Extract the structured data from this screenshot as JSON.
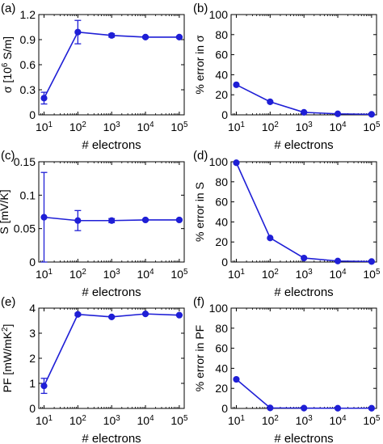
{
  "colors": {
    "series": "#1f1fd6",
    "axis": "#000000",
    "background": "#ffffff"
  },
  "chart_data": [
    {
      "panel_label": "(a)",
      "type": "line",
      "x": [
        10,
        100,
        1000,
        10000,
        100000
      ],
      "x_tick_labels": [
        "10^1",
        "10^2",
        "10^3",
        "10^4",
        "10^5"
      ],
      "xscale": "log",
      "xlim": [
        7,
        140000
      ],
      "y": [
        0.2,
        0.99,
        0.95,
        0.93,
        0.93
      ],
      "yerr": [
        0.07,
        0.14,
        0.02,
        0.01,
        0.01
      ],
      "ylim": [
        0,
        1.2
      ],
      "y_ticks": [
        "0",
        "0.3",
        "0.6",
        "0.9",
        "1.2"
      ],
      "y_tick_values": [
        0,
        0.3,
        0.6,
        0.9,
        1.2
      ],
      "xlabel": "# electrons",
      "ylabel": "σ [10^6 S/m]",
      "grid": false
    },
    {
      "panel_label": "(b)",
      "type": "line",
      "x": [
        10,
        100,
        1000,
        10000,
        100000
      ],
      "x_tick_labels": [
        "10^1",
        "10^2",
        "10^3",
        "10^4",
        "10^5"
      ],
      "xscale": "log",
      "xlim": [
        7,
        140000
      ],
      "y": [
        30,
        13,
        2.5,
        1,
        0.5
      ],
      "ylim": [
        0,
        100
      ],
      "y_ticks": [
        "0",
        "20",
        "40",
        "60",
        "80",
        "100"
      ],
      "y_tick_values": [
        0,
        20,
        40,
        60,
        80,
        100
      ],
      "xlabel": "# electrons",
      "ylabel": "% error in σ",
      "grid": false
    },
    {
      "panel_label": "(c)",
      "type": "line",
      "x": [
        10,
        100,
        1000,
        10000,
        100000
      ],
      "x_tick_labels": [
        "10^1",
        "10^2",
        "10^3",
        "10^4",
        "10^5"
      ],
      "xscale": "log",
      "xlim": [
        7,
        140000
      ],
      "y": [
        0.067,
        0.062,
        0.062,
        0.063,
        0.063
      ],
      "yerr": [
        0.067,
        0.015,
        0.003,
        0.001,
        0.001
      ],
      "ylim": [
        0,
        0.15
      ],
      "y_ticks": [
        "0",
        "0.05",
        "0.1",
        "0.15"
      ],
      "y_tick_values": [
        0,
        0.05,
        0.1,
        0.15
      ],
      "xlabel": "# electrons",
      "ylabel": "S [mV/K]",
      "grid": false
    },
    {
      "panel_label": "(d)",
      "type": "line",
      "x": [
        10,
        100,
        1000,
        10000,
        100000
      ],
      "x_tick_labels": [
        "10^1",
        "10^2",
        "10^3",
        "10^4",
        "10^5"
      ],
      "xscale": "log",
      "xlim": [
        7,
        140000
      ],
      "y": [
        99,
        24,
        4,
        1,
        0.5
      ],
      "ylim": [
        0,
        100
      ],
      "y_ticks": [
        "0",
        "20",
        "40",
        "60",
        "80",
        "100"
      ],
      "y_tick_values": [
        0,
        20,
        40,
        60,
        80,
        100
      ],
      "xlabel": "# electrons",
      "ylabel": "% error in S",
      "grid": false
    },
    {
      "panel_label": "(e)",
      "type": "line",
      "x": [
        10,
        100,
        1000,
        10000,
        100000
      ],
      "x_tick_labels": [
        "10^1",
        "10^2",
        "10^3",
        "10^4",
        "10^5"
      ],
      "xscale": "log",
      "xlim": [
        7,
        140000
      ],
      "y": [
        0.9,
        3.75,
        3.65,
        3.77,
        3.72
      ],
      "yerr": [
        0.3,
        0.05,
        0.03,
        0.02,
        0.02
      ],
      "ylim": [
        0,
        4
      ],
      "y_ticks": [
        "0",
        "1",
        "2",
        "3",
        "4"
      ],
      "y_tick_values": [
        0,
        1,
        2,
        3,
        4
      ],
      "xlabel": "# electrons",
      "ylabel": "PF [mW/mK^2]",
      "grid": false
    },
    {
      "panel_label": "(f)",
      "type": "line",
      "x": [
        10,
        100,
        1000,
        10000,
        100000
      ],
      "x_tick_labels": [
        "10^1",
        "10^2",
        "10^3",
        "10^4",
        "10^5"
      ],
      "xscale": "log",
      "xlim": [
        7,
        140000
      ],
      "y": [
        29,
        0.5,
        0.3,
        0.2,
        0.2
      ],
      "ylim": [
        0,
        100
      ],
      "y_ticks": [
        "0",
        "20",
        "40",
        "60",
        "80",
        "100"
      ],
      "y_tick_values": [
        0,
        20,
        40,
        60,
        80,
        100
      ],
      "xlabel": "# electrons",
      "ylabel": "% error in PF",
      "grid": false
    }
  ]
}
